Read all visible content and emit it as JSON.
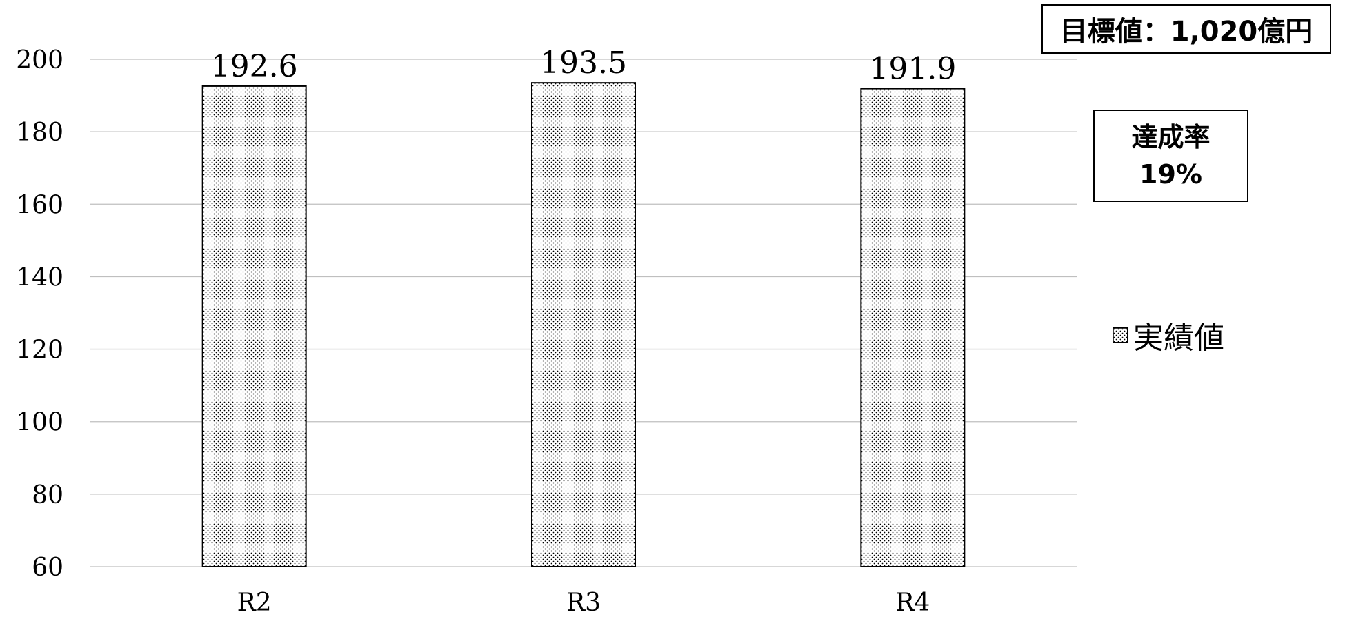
{
  "annotations": {
    "target": "目標値：1,020億円",
    "rate_label": "達成率",
    "rate_value": "19%"
  },
  "chart_data": {
    "type": "bar",
    "categories": [
      "R2",
      "R3",
      "R4"
    ],
    "series": [
      {
        "name": "実績値",
        "values": [
          192.6,
          193.5,
          191.9
        ]
      }
    ],
    "data_labels": [
      "192.6",
      "193.5",
      "191.9"
    ],
    "ylim": [
      60,
      200
    ],
    "yticks": [
      60,
      80,
      100,
      120,
      140,
      160,
      180,
      200
    ],
    "grid": true,
    "legend_position": "right",
    "bar_fill": "dotted pattern",
    "colors": {
      "bar_border": "#000000",
      "grid": "#bfbfbf",
      "text": "#000000"
    }
  }
}
